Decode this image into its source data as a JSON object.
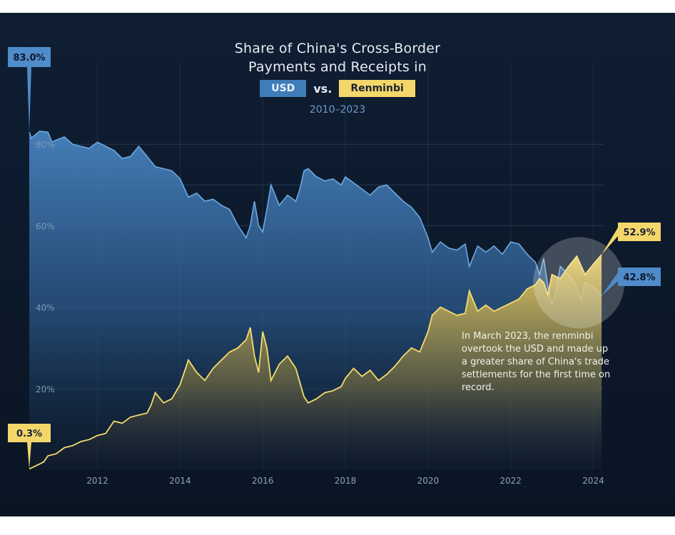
{
  "chart_data": {
    "type": "area",
    "title_lines": [
      "Share of China's Cross-Border",
      "Payments and Receipts in"
    ],
    "legend": {
      "usd": "USD",
      "vs": "vs.",
      "rmb": "Renminbi"
    },
    "subtitle": "2010–2023",
    "x_range": [
      2010.35,
      2024.25
    ],
    "ylim": [
      0,
      100
    ],
    "x_ticks": [
      {
        "value": 2012,
        "label": "2012"
      },
      {
        "value": 2014,
        "label": "2014"
      },
      {
        "value": 2016,
        "label": "2016"
      },
      {
        "value": 2018,
        "label": "2018"
      },
      {
        "value": 2020,
        "label": "2020"
      },
      {
        "value": 2022,
        "label": "2022"
      },
      {
        "value": 2024,
        "label": "2024"
      }
    ],
    "y_ticks": [
      {
        "value": 20,
        "label": "20%"
      },
      {
        "value": 40,
        "label": "40%"
      },
      {
        "value": 60,
        "label": "60%"
      },
      {
        "value": 80,
        "label": "80%"
      }
    ],
    "series": [
      {
        "name": "USD",
        "color": "#5c9bd6",
        "points": [
          [
            2010.35,
            83.0
          ],
          [
            2010.4,
            81.5
          ],
          [
            2010.6,
            83.2
          ],
          [
            2010.8,
            83.0
          ],
          [
            2010.9,
            80.5
          ],
          [
            2011.0,
            81.0
          ],
          [
            2011.2,
            81.8
          ],
          [
            2011.4,
            80.0
          ],
          [
            2011.6,
            79.5
          ],
          [
            2011.8,
            79.0
          ],
          [
            2012.0,
            80.5
          ],
          [
            2012.2,
            79.5
          ],
          [
            2012.4,
            78.5
          ],
          [
            2012.6,
            76.5
          ],
          [
            2012.8,
            77.0
          ],
          [
            2013.0,
            79.5
          ],
          [
            2013.2,
            77.0
          ],
          [
            2013.4,
            74.5
          ],
          [
            2013.6,
            74.0
          ],
          [
            2013.8,
            73.5
          ],
          [
            2014.0,
            71.5
          ],
          [
            2014.2,
            67.0
          ],
          [
            2014.4,
            68.0
          ],
          [
            2014.6,
            66.0
          ],
          [
            2014.8,
            66.5
          ],
          [
            2015.0,
            65.0
          ],
          [
            2015.2,
            64.0
          ],
          [
            2015.4,
            60.0
          ],
          [
            2015.6,
            57.0
          ],
          [
            2015.7,
            60.0
          ],
          [
            2015.8,
            66.0
          ],
          [
            2015.9,
            60.0
          ],
          [
            2016.0,
            58.5
          ],
          [
            2016.1,
            64.0
          ],
          [
            2016.2,
            70.0
          ],
          [
            2016.4,
            65.0
          ],
          [
            2016.6,
            67.5
          ],
          [
            2016.8,
            66.0
          ],
          [
            2016.9,
            69.0
          ],
          [
            2017.0,
            73.5
          ],
          [
            2017.1,
            74.0
          ],
          [
            2017.3,
            72.0
          ],
          [
            2017.5,
            71.0
          ],
          [
            2017.7,
            71.5
          ],
          [
            2017.9,
            70.0
          ],
          [
            2018.0,
            72.0
          ],
          [
            2018.2,
            70.5
          ],
          [
            2018.4,
            69.0
          ],
          [
            2018.6,
            67.5
          ],
          [
            2018.8,
            69.5
          ],
          [
            2019.0,
            70.0
          ],
          [
            2019.2,
            68.0
          ],
          [
            2019.4,
            66.0
          ],
          [
            2019.6,
            64.5
          ],
          [
            2019.8,
            62.0
          ],
          [
            2020.0,
            57.0
          ],
          [
            2020.1,
            53.5
          ],
          [
            2020.3,
            56.0
          ],
          [
            2020.5,
            54.5
          ],
          [
            2020.7,
            54.0
          ],
          [
            2020.9,
            55.5
          ],
          [
            2021.0,
            50.0
          ],
          [
            2021.2,
            55.0
          ],
          [
            2021.4,
            53.5
          ],
          [
            2021.6,
            55.0
          ],
          [
            2021.8,
            53.0
          ],
          [
            2022.0,
            56.0
          ],
          [
            2022.2,
            55.5
          ],
          [
            2022.4,
            53.0
          ],
          [
            2022.6,
            51.0
          ],
          [
            2022.7,
            48.0
          ],
          [
            2022.8,
            52.0
          ],
          [
            2022.9,
            45.0
          ],
          [
            2023.0,
            40.5
          ],
          [
            2023.1,
            44.0
          ],
          [
            2023.2,
            50.0
          ],
          [
            2023.4,
            48.0
          ],
          [
            2023.6,
            45.0
          ],
          [
            2023.7,
            41.5
          ],
          [
            2023.8,
            46.0
          ],
          [
            2024.0,
            45.0
          ],
          [
            2024.2,
            42.8
          ]
        ]
      },
      {
        "name": "Renminbi",
        "color": "#f0d45c",
        "points": [
          [
            2010.35,
            0.3
          ],
          [
            2010.5,
            1.0
          ],
          [
            2010.7,
            2.0
          ],
          [
            2010.8,
            3.5
          ],
          [
            2011.0,
            4.0
          ],
          [
            2011.2,
            5.5
          ],
          [
            2011.4,
            6.0
          ],
          [
            2011.6,
            7.0
          ],
          [
            2011.8,
            7.5
          ],
          [
            2012.0,
            8.5
          ],
          [
            2012.2,
            9.0
          ],
          [
            2012.3,
            10.5
          ],
          [
            2012.4,
            12.0
          ],
          [
            2012.6,
            11.5
          ],
          [
            2012.8,
            13.0
          ],
          [
            2013.0,
            13.5
          ],
          [
            2013.2,
            14.0
          ],
          [
            2013.3,
            16.0
          ],
          [
            2013.4,
            19.0
          ],
          [
            2013.6,
            16.5
          ],
          [
            2013.8,
            17.5
          ],
          [
            2014.0,
            21.0
          ],
          [
            2014.2,
            27.0
          ],
          [
            2014.4,
            24.0
          ],
          [
            2014.6,
            22.0
          ],
          [
            2014.8,
            25.0
          ],
          [
            2015.0,
            27.0
          ],
          [
            2015.2,
            29.0
          ],
          [
            2015.4,
            30.0
          ],
          [
            2015.6,
            32.0
          ],
          [
            2015.7,
            35.0
          ],
          [
            2015.8,
            28.0
          ],
          [
            2015.9,
            24.0
          ],
          [
            2016.0,
            34.0
          ],
          [
            2016.1,
            30.0
          ],
          [
            2016.2,
            22.0
          ],
          [
            2016.4,
            26.0
          ],
          [
            2016.6,
            28.0
          ],
          [
            2016.8,
            25.0
          ],
          [
            2017.0,
            18.0
          ],
          [
            2017.1,
            16.5
          ],
          [
            2017.3,
            17.5
          ],
          [
            2017.5,
            19.0
          ],
          [
            2017.7,
            19.5
          ],
          [
            2017.9,
            20.5
          ],
          [
            2018.0,
            22.5
          ],
          [
            2018.2,
            25.0
          ],
          [
            2018.4,
            23.0
          ],
          [
            2018.6,
            24.5
          ],
          [
            2018.8,
            22.0
          ],
          [
            2019.0,
            23.5
          ],
          [
            2019.2,
            25.5
          ],
          [
            2019.4,
            28.0
          ],
          [
            2019.6,
            30.0
          ],
          [
            2019.8,
            29.0
          ],
          [
            2020.0,
            34.0
          ],
          [
            2020.1,
            38.0
          ],
          [
            2020.3,
            40.0
          ],
          [
            2020.5,
            39.0
          ],
          [
            2020.7,
            38.0
          ],
          [
            2020.9,
            38.5
          ],
          [
            2021.0,
            44.0
          ],
          [
            2021.2,
            39.0
          ],
          [
            2021.4,
            40.5
          ],
          [
            2021.6,
            39.0
          ],
          [
            2021.8,
            40.0
          ],
          [
            2022.0,
            41.0
          ],
          [
            2022.2,
            42.0
          ],
          [
            2022.4,
            44.5
          ],
          [
            2022.6,
            45.5
          ],
          [
            2022.7,
            47.0
          ],
          [
            2022.8,
            46.0
          ],
          [
            2022.9,
            43.0
          ],
          [
            2023.0,
            48.0
          ],
          [
            2023.2,
            47.0
          ],
          [
            2023.4,
            50.0
          ],
          [
            2023.6,
            52.5
          ],
          [
            2023.8,
            48.0
          ],
          [
            2024.0,
            50.5
          ],
          [
            2024.2,
            52.9
          ]
        ]
      }
    ],
    "end_labels": {
      "usd_start": "83.0%",
      "rmb_start": "0.3%",
      "rmb_end": "52.9%",
      "usd_end": "42.8%"
    },
    "annotation": "In March 2023, the renminbi overtook the USD and made up a greater share of China's trade settlements for the first time on record."
  },
  "colors": {
    "background": "#0d1a2c",
    "usd": "#5c9bd6",
    "rmb": "#f0d45c",
    "usd_label": "#4f8cc9",
    "rmb_label": "#f3d76a"
  }
}
